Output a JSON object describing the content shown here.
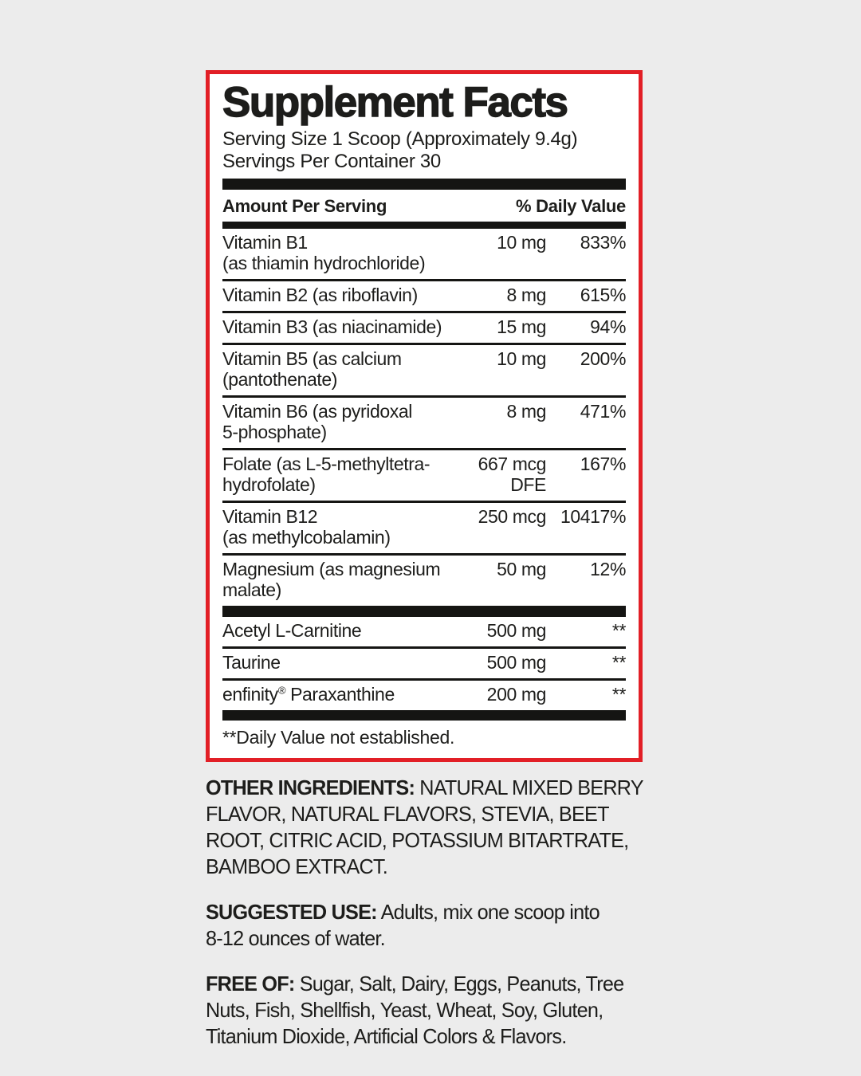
{
  "colors": {
    "background": "#ececec",
    "accent_red": "#e21f26",
    "ink": "#1d1d1b"
  },
  "panel": {
    "title": "Supplement Facts",
    "serving_size": "Serving Size 1 Scoop (Approximately 9.4g)",
    "servings_per_container": "Servings Per Container 30",
    "header": {
      "amount": "Amount Per Serving",
      "dv": "% Daily Value"
    },
    "main_rows": [
      {
        "name": "Vitamin B1\n(as thiamin hydrochloride)",
        "amount": "10 mg",
        "dv": "833%"
      },
      {
        "name": "Vitamin B2 (as riboflavin)",
        "amount": "8 mg",
        "dv": "615%"
      },
      {
        "name": "Vitamin B3 (as niacinamide)",
        "amount": "15 mg",
        "dv": "94%"
      },
      {
        "name": "Vitamin B5 (as calcium\n(pantothenate)",
        "amount": "10 mg",
        "dv": "200%"
      },
      {
        "name": "Vitamin B6 (as pyridoxal\n5-phosphate)",
        "amount": "8 mg",
        "dv": "471%"
      },
      {
        "name": "Folate (as L-5-methyltetra-\nhydrofolate)",
        "amount": "667 mcg\nDFE",
        "dv": "167%"
      },
      {
        "name": "Vitamin B12\n(as methylcobalamin)",
        "amount": "250 mcg",
        "dv": "10417%"
      },
      {
        "name": "Magnesium (as magnesium\nmalate)",
        "amount": "50 mg",
        "dv": "12%"
      }
    ],
    "other_rows": [
      {
        "name": "Acetyl L-Carnitine",
        "amount": "500 mg",
        "dv": "**"
      },
      {
        "name": "Taurine",
        "amount": "500 mg",
        "dv": "**"
      },
      {
        "name": "enfinity® Paraxanthine",
        "amount": "200 mg",
        "dv": "**"
      }
    ],
    "footnote": "**Daily Value not established."
  },
  "sections": [
    {
      "label": "OTHER INGREDIENTS:",
      "text": " NATURAL MIXED BERRY\nFLAVOR, NATURAL FLAVORS, STEVIA, BEET\nROOT, CITRIC ACID, POTASSIUM BITARTRATE,\nBAMBOO EXTRACT."
    },
    {
      "label": "SUGGESTED USE:",
      "text": " Adults, mix one scoop into\n8-12 ounces of water."
    },
    {
      "label": "FREE OF:",
      "text": " Sugar, Salt, Dairy, Eggs, Peanuts, Tree\nNuts, Fish, Shellfish, Yeast, Wheat, Soy, Gluten,\nTitanium Dioxide, Artificial Colors & Flavors."
    }
  ]
}
